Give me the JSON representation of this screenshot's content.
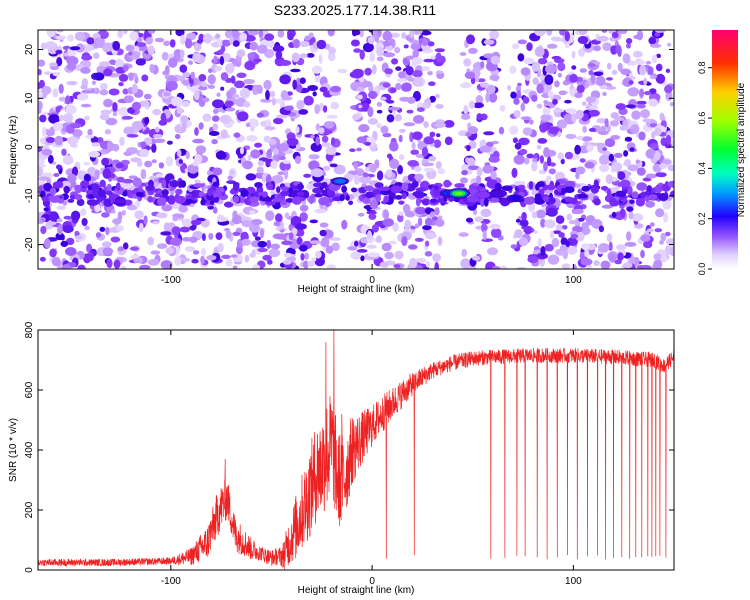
{
  "figure": {
    "title": "S233.2025.177.14.38.R11"
  },
  "chart_data": [
    {
      "type": "heatmap",
      "xlabel": "Height of straight line (km)",
      "ylabel": "Frequency (Hz)",
      "xlim": [
        -166,
        150
      ],
      "ylim": [
        -25,
        24
      ],
      "x_ticks": [
        -100,
        0,
        100
      ],
      "y_ticks": [
        -20,
        -10,
        0,
        10,
        20
      ],
      "grid": false,
      "colorbar": {
        "label": "Normalized spectral amplitude",
        "range": [
          0.0,
          0.95
        ],
        "ticks": [
          0.0,
          0.2,
          0.4,
          0.6,
          0.8
        ],
        "colormap": [
          "#ffffff",
          "#e8dcff",
          "#b48cff",
          "#7a20ff",
          "#4400cc",
          "#0000ff",
          "#00c8ff",
          "#00ff80",
          "#00ff00",
          "#ffff00",
          "#ff8000",
          "#ff0000",
          "#ff0066"
        ]
      },
      "gaps_x": [
        [
          -18,
          -10
        ],
        [
          35,
          45
        ],
        [
          62,
          70
        ]
      ],
      "band": {
        "frequency_center": -9.5,
        "frequency_halfwidth": 2.0
      },
      "hotspots": [
        {
          "x": -16,
          "y": -7,
          "value": 0.3
        },
        {
          "x": 38,
          "y": -9.5,
          "value": 0.28
        },
        {
          "x": 43,
          "y": -9.5,
          "value": 0.55
        },
        {
          "x": 71,
          "y": -10.5,
          "value": 0.25
        },
        {
          "x": 63,
          "y": -9.5,
          "value": 0.2
        },
        {
          "x": 55,
          "y": -9.8,
          "value": 0.15
        }
      ]
    },
    {
      "type": "line",
      "xlabel": "Height of straight line (km)",
      "ylabel": "SNR (10 * v/v)",
      "xlim": [
        -166,
        150
      ],
      "ylim": [
        0,
        800
      ],
      "x_ticks": [
        -100,
        0,
        100
      ],
      "y_ticks": [
        0,
        200,
        400,
        600,
        800
      ],
      "grid": false,
      "series": [
        {
          "color": "#ee2222",
          "profile": [
            [
              -166,
              25
            ],
            [
              -130,
              25
            ],
            [
              -100,
              30
            ],
            [
              -90,
              45
            ],
            [
              -82,
              90
            ],
            [
              -76,
              200
            ],
            [
              -72,
              240
            ],
            [
              -68,
              120
            ],
            [
              -60,
              70
            ],
            [
              -50,
              40
            ],
            [
              -44,
              50
            ],
            [
              -38,
              140
            ],
            [
              -32,
              240
            ],
            [
              -28,
              320
            ],
            [
              -25,
              350
            ],
            [
              -20,
              420
            ],
            [
              -17,
              300
            ],
            [
              -14,
              300
            ],
            [
              -10,
              400
            ],
            [
              -5,
              440
            ],
            [
              0,
              480
            ],
            [
              5,
              520
            ],
            [
              10,
              555
            ],
            [
              20,
              620
            ],
            [
              30,
              665
            ],
            [
              40,
              690
            ],
            [
              50,
              705
            ],
            [
              60,
              710
            ],
            [
              80,
              715
            ],
            [
              100,
              715
            ],
            [
              120,
              710
            ],
            [
              140,
              700
            ],
            [
              145,
              680
            ],
            [
              150,
              710
            ]
          ],
          "noise": [
            [
              -166,
              12
            ],
            [
              -100,
              12
            ],
            [
              -90,
              30
            ],
            [
              -82,
              60
            ],
            [
              -76,
              80
            ],
            [
              -68,
              60
            ],
            [
              -55,
              25
            ],
            [
              -46,
              30
            ],
            [
              -38,
              110
            ],
            [
              -30,
              160
            ],
            [
              -22,
              190
            ],
            [
              -15,
              160
            ],
            [
              -10,
              120
            ],
            [
              -5,
              90
            ],
            [
              0,
              70
            ],
            [
              10,
              55
            ],
            [
              20,
              40
            ],
            [
              30,
              28
            ],
            [
              60,
              25
            ],
            [
              150,
              25
            ]
          ],
          "dropouts_x": [
            7,
            21,
            59,
            66,
            72,
            76,
            82,
            87,
            92,
            97,
            102,
            107,
            112,
            116,
            120,
            124,
            128,
            131,
            134,
            137,
            139,
            141,
            143,
            146
          ],
          "dropout_depth": 35,
          "spikes": [
            [
              -19,
              800
            ],
            [
              -23,
              760
            ],
            [
              -73,
              370
            ],
            [
              -15,
              520
            ]
          ]
        }
      ]
    }
  ]
}
